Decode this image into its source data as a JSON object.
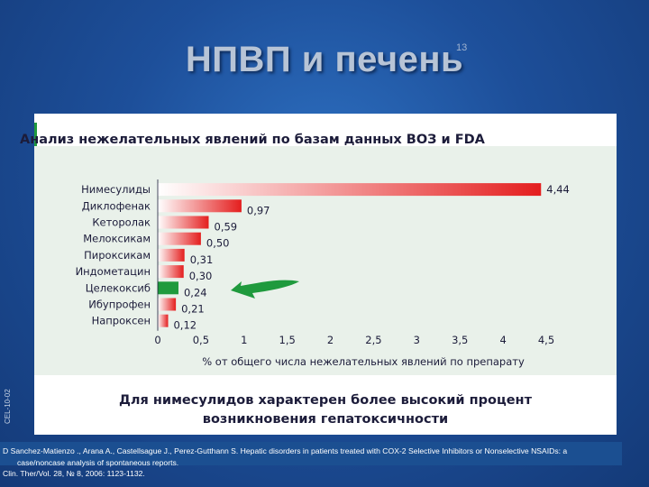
{
  "slide": {
    "title": "НПВП и печень",
    "number": "13",
    "side_code": "CEL-10-02"
  },
  "card": {
    "heading": "Анализ нежелательных явлений по базам данных ВОЗ и FDA",
    "conclusion_line1": "Для нимесулидов характерен более высокий процент",
    "conclusion_line2": "возникновения гепатоксичности"
  },
  "reference": {
    "line1": "D Sanchez-Matienzo ., Arana A., Castellsague J., Perez-Gutthann S. Hepatic disorders in patients treated with COX-2 Selective Inhibitors or Nonselective NSAIDs: a",
    "line2": "case/noncase analysis of spontaneous reports.",
    "line3": "Clin. Ther/Vol. 28, № 8, 2006: 1123-1132."
  },
  "colors": {
    "bar_start": "#ffffff",
    "bar_end": "#e41e1e",
    "highlight": "#1f9a3d",
    "arrow": "#1f9a3d"
  },
  "chart_data": {
    "type": "bar",
    "orientation": "horizontal",
    "title": "Анализ нежелательных явлений по базам данных ВОЗ и FDA",
    "xlabel": "% от общего числа нежелательных явлений по препарату",
    "ylabel": "",
    "xlim": [
      0,
      4.5
    ],
    "xticks": [
      0,
      0.5,
      1,
      1.5,
      2,
      2.5,
      3,
      3.5,
      4,
      4.5
    ],
    "xtick_labels": [
      "0",
      "0,5",
      "1",
      "1,5",
      "2",
      "2,5",
      "3",
      "3,5",
      "4",
      "4,5"
    ],
    "categories": [
      "Нимесулиды",
      "Диклофенак",
      "Кеторолак",
      "Мелоксикам",
      "Пироксикам",
      "Индометацин",
      "Целекоксиб",
      "Ибупрофен",
      "Напроксен"
    ],
    "values": [
      4.44,
      0.97,
      0.59,
      0.5,
      0.31,
      0.3,
      0.24,
      0.21,
      0.12
    ],
    "value_labels": [
      "4,44",
      "0,97",
      "0,59",
      "0,50",
      "0,31",
      "0,30",
      "0,24",
      "0,21",
      "0,12"
    ],
    "highlighted_category": "Целекоксиб",
    "grid": false,
    "legend": "none"
  }
}
